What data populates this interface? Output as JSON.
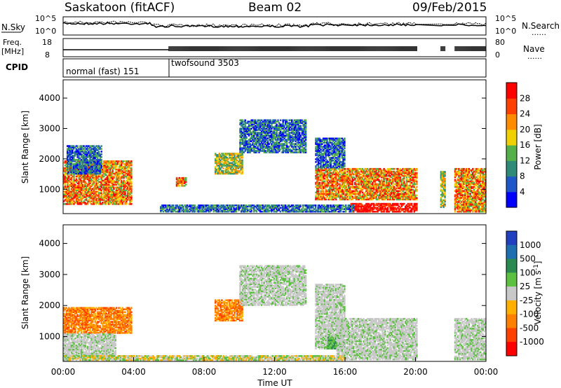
{
  "header": {
    "station": "Saskatoon (fitACF)",
    "beam": "Beam 02",
    "date": "09/Feb/2015"
  },
  "status": {
    "nsky_label": "N.Sky",
    "nsearch_label": "N.Search",
    "freq_label": "Freq.",
    "freq_unit": "[MHz]",
    "nave_label": "Nave",
    "cpid_label": "CPID",
    "dots": "......",
    "noise_ticks_left": [
      "10^5",
      "10^0"
    ],
    "noise_ticks_right": [
      "10^5",
      "10^0"
    ],
    "freq_ticks": [
      "18",
      "8"
    ],
    "nave_ticks": [
      "80",
      "0"
    ],
    "cpid_segments": [
      {
        "name": "normal (fast)",
        "id": "151",
        "start": 0,
        "end": 6
      },
      {
        "name": "twofsound",
        "id": "3503",
        "start": 6,
        "end": 24
      }
    ]
  },
  "chart_data": [
    {
      "type": "heatmap",
      "title": "Power",
      "ylabel": "Slant Range [km]",
      "xlabel": "",
      "x_domain_hours": [
        0,
        24
      ],
      "ylim": [
        200,
        4600
      ],
      "yticks": [
        "1000",
        "2000",
        "3000",
        "4000"
      ],
      "colorbar": {
        "label": "Power [dB]",
        "ticks": [
          "4",
          "8",
          "12",
          "16",
          "20",
          "24",
          "28"
        ],
        "colors": [
          "#0000ff",
          "#1f56c8",
          "#2f8a78",
          "#56b04a",
          "#f0d000",
          "#ff8c00",
          "#ff4000",
          "#ff0000"
        ]
      },
      "regions": [
        {
          "t0": 0.0,
          "t1": 3.9,
          "r0": 500,
          "r1": 1950,
          "level": "high"
        },
        {
          "t0": 0.2,
          "t1": 2.2,
          "r0": 1500,
          "r1": 2450,
          "level": "low"
        },
        {
          "t0": 6.4,
          "t1": 7.0,
          "r0": 1100,
          "r1": 1400,
          "level": "high"
        },
        {
          "t0": 8.6,
          "t1": 10.2,
          "r0": 1500,
          "r1": 2200,
          "level": "mid"
        },
        {
          "t0": 10.0,
          "t1": 13.8,
          "r0": 2200,
          "r1": 3300,
          "level": "low"
        },
        {
          "t0": 14.3,
          "t1": 20.1,
          "r0": 650,
          "r1": 1700,
          "level": "high"
        },
        {
          "t0": 14.3,
          "t1": 16.0,
          "r0": 1700,
          "r1": 2700,
          "level": "low"
        },
        {
          "t0": 16.3,
          "t1": 20.1,
          "r0": 250,
          "r1": 550,
          "level": "peak"
        },
        {
          "t0": 21.4,
          "t1": 21.7,
          "r0": 400,
          "r1": 1600,
          "level": "mid"
        },
        {
          "t0": 22.2,
          "t1": 24.0,
          "r0": 250,
          "r1": 1700,
          "level": "high"
        },
        {
          "t0": 5.5,
          "t1": 16.5,
          "r0": 250,
          "r1": 500,
          "level": "low"
        }
      ]
    },
    {
      "type": "heatmap",
      "title": "Velocity",
      "ylabel": "Slant Range [km]",
      "xlabel": "Time UT",
      "x_domain_hours": [
        0,
        24
      ],
      "ylim": [
        200,
        4600
      ],
      "yticks": [
        "1000",
        "2000",
        "3000",
        "4000"
      ],
      "xticks": [
        "00:00",
        "04:00",
        "08:00",
        "12:00",
        "16:00",
        "20:00",
        "00:00"
      ],
      "colorbar": {
        "label": "Velocity [m s^-1]",
        "ticks": [
          "1000",
          "500",
          "100",
          "25",
          "-25",
          "-100",
          "-500",
          "-1000"
        ],
        "colors": [
          "#2040c0",
          "#1f6fb0",
          "#2a8a50",
          "#5cc040",
          "#c8c8c8",
          "#ffb000",
          "#ff8000",
          "#ff4000",
          "#ff0000"
        ]
      },
      "regions": [
        {
          "t0": 0.0,
          "t1": 3.9,
          "r0": 1100,
          "r1": 1950,
          "level": "orange"
        },
        {
          "t0": 0.0,
          "t1": 3.0,
          "r0": 300,
          "r1": 1100,
          "level": "grey"
        },
        {
          "t0": 8.6,
          "t1": 10.2,
          "r0": 1500,
          "r1": 2200,
          "level": "orange"
        },
        {
          "t0": 10.0,
          "t1": 13.8,
          "r0": 2000,
          "r1": 3300,
          "level": "grey"
        },
        {
          "t0": 14.3,
          "t1": 16.0,
          "r0": 600,
          "r1": 2700,
          "level": "grey"
        },
        {
          "t0": 15.0,
          "t1": 16.0,
          "r0": 600,
          "r1": 1000,
          "level": "green"
        },
        {
          "t0": 15.5,
          "t1": 20.1,
          "r0": 250,
          "r1": 1600,
          "level": "grey"
        },
        {
          "t0": 22.2,
          "t1": 24.0,
          "r0": 250,
          "r1": 1600,
          "level": "grey"
        },
        {
          "t0": 0.0,
          "t1": 16.0,
          "r0": 230,
          "r1": 400,
          "level": "yellow"
        }
      ]
    }
  ]
}
